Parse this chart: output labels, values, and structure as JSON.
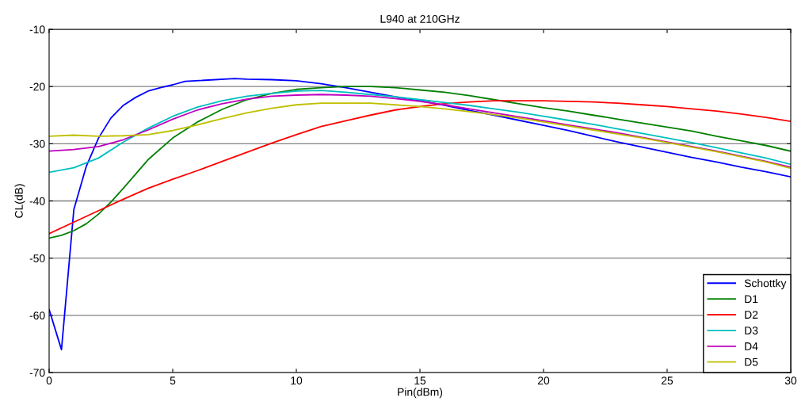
{
  "chart_data": {
    "type": "line",
    "title": "L940 at 210GHz",
    "xlabel": "Pin(dBm)",
    "ylabel": "CL(dB)",
    "xlim": [
      0,
      30
    ],
    "xticks": [
      0,
      5,
      10,
      15,
      20,
      25,
      30
    ],
    "ylim": [
      -70,
      -10
    ],
    "yticks": [
      -70,
      -60,
      -50,
      -40,
      -30,
      -20,
      -10
    ],
    "grid": "y",
    "legend": "bottom right",
    "line_style": "solid",
    "series": [
      {
        "name": "Schottky",
        "color": "#0000ff",
        "x": [
          0,
          0.5,
          1,
          1.5,
          2,
          2.5,
          3,
          3.5,
          4,
          4.5,
          5,
          5.5,
          7.5,
          8,
          9,
          10,
          11,
          12,
          13,
          14,
          15,
          16,
          17,
          18,
          19,
          20,
          21,
          22,
          23,
          24,
          25,
          26,
          27,
          28,
          29,
          30
        ],
        "values": [
          -59,
          -66,
          -41.5,
          -34,
          -29,
          -25.5,
          -23.3,
          -21.9,
          -20.8,
          -20.2,
          -19.7,
          -19.1,
          -18.6,
          -18.7,
          -18.8,
          -19,
          -19.5,
          -20.2,
          -21,
          -21.8,
          -22.5,
          -23.3,
          -24.2,
          -25,
          -25.9,
          -26.8,
          -27.7,
          -28.7,
          -29.7,
          -30.6,
          -31.5,
          -32.4,
          -33.2,
          -34.1,
          -34.9,
          -35.8
        ]
      },
      {
        "name": "D1",
        "color": "#008000",
        "x": [
          0,
          0.5,
          1,
          1.5,
          2,
          2.5,
          3,
          3.5,
          4,
          5,
          6,
          7,
          8,
          9,
          10,
          11,
          12,
          13,
          14,
          15,
          16,
          17,
          18,
          19,
          20,
          21,
          22,
          23,
          24,
          25,
          26,
          27,
          28,
          29,
          30
        ],
        "values": [
          -46.5,
          -46,
          -45.2,
          -44,
          -42.3,
          -40.2,
          -37.8,
          -35.3,
          -32.8,
          -29,
          -26.2,
          -24,
          -22.3,
          -21.2,
          -20.5,
          -20.2,
          -20,
          -20,
          -20.2,
          -20.6,
          -21,
          -21.6,
          -22.3,
          -23,
          -23.7,
          -24.3,
          -25,
          -25.7,
          -26.4,
          -27.1,
          -27.8,
          -28.7,
          -29.5,
          -30.3,
          -31.3
        ]
      },
      {
        "name": "D2",
        "color": "#ff0000",
        "x": [
          0,
          1,
          2,
          3,
          4,
          5,
          6,
          7,
          8,
          9,
          10,
          11,
          12,
          13,
          14,
          15,
          16,
          17,
          18,
          19,
          20,
          21,
          22,
          23,
          24,
          25,
          26,
          27,
          28,
          29,
          30
        ],
        "values": [
          -45.7,
          -43.7,
          -41.7,
          -39.7,
          -37.8,
          -36.2,
          -34.7,
          -33.1,
          -31.5,
          -29.9,
          -28.4,
          -27,
          -26,
          -25,
          -24.1,
          -23.5,
          -23,
          -22.7,
          -22.5,
          -22.5,
          -22.5,
          -22.6,
          -22.7,
          -22.9,
          -23.2,
          -23.5,
          -23.9,
          -24.3,
          -24.8,
          -25.4,
          -26.1
        ]
      },
      {
        "name": "D3",
        "color": "#00bfbf",
        "x": [
          0,
          1,
          2,
          3,
          4,
          5,
          6,
          7,
          8,
          9,
          10,
          11,
          12,
          13,
          14,
          15,
          16,
          17,
          18,
          19,
          20,
          21,
          22,
          23,
          24,
          25,
          26,
          27,
          28,
          29,
          30
        ],
        "values": [
          -35,
          -34.2,
          -32.5,
          -29.7,
          -27.3,
          -25.2,
          -23.6,
          -22.5,
          -21.7,
          -21.2,
          -20.8,
          -20.7,
          -21,
          -21.4,
          -21.8,
          -22.3,
          -22.8,
          -23.3,
          -23.9,
          -24.5,
          -25.2,
          -25.9,
          -26.6,
          -27.4,
          -28.2,
          -29,
          -29.8,
          -30.7,
          -31.6,
          -32.5,
          -33.6
        ]
      },
      {
        "name": "D4",
        "color": "#bf00bf",
        "x": [
          0,
          1,
          2,
          3,
          4,
          5,
          6,
          7,
          8,
          9,
          10,
          11,
          12,
          13,
          14,
          15,
          16,
          17,
          18,
          19,
          20,
          21,
          22,
          23,
          24,
          25,
          26,
          27,
          28,
          29,
          30
        ],
        "values": [
          -31.3,
          -31,
          -30.5,
          -29.3,
          -27.6,
          -25.7,
          -24.1,
          -23,
          -22.2,
          -21.7,
          -21.5,
          -21.4,
          -21.5,
          -21.7,
          -22.1,
          -22.6,
          -23.2,
          -23.9,
          -24.6,
          -25.3,
          -26,
          -26.7,
          -27.4,
          -28.1,
          -28.9,
          -29.7,
          -30.5,
          -31.3,
          -32.2,
          -33.1,
          -34.1
        ]
      },
      {
        "name": "D5",
        "color": "#bfbf00",
        "x": [
          0,
          1,
          2,
          3,
          4,
          5,
          6,
          7,
          8,
          9,
          10,
          11,
          12,
          13,
          14,
          15,
          16,
          17,
          18,
          19,
          20,
          21,
          22,
          23,
          24,
          25,
          26,
          27,
          28,
          29,
          30
        ],
        "values": [
          -28.7,
          -28.5,
          -28.7,
          -28.6,
          -28.4,
          -27.7,
          -26.7,
          -25.6,
          -24.6,
          -23.8,
          -23.2,
          -22.9,
          -22.9,
          -22.9,
          -23.2,
          -23.5,
          -23.9,
          -24.4,
          -24.9,
          -25.5,
          -26.2,
          -26.9,
          -27.6,
          -28.3,
          -29,
          -29.8,
          -30.6,
          -31.4,
          -32.3,
          -33.2,
          -34.3
        ]
      }
    ]
  }
}
